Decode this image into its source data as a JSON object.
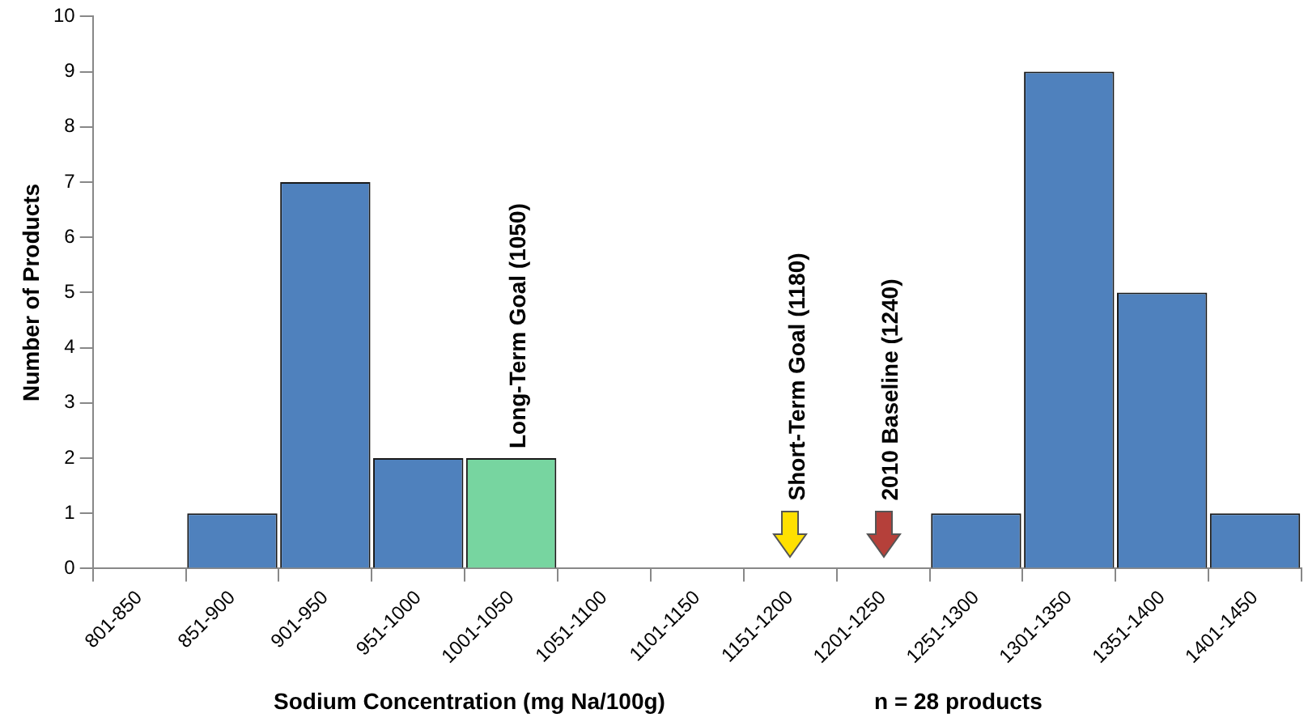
{
  "chart_data": {
    "type": "bar",
    "xlabel": "Sodium Concentration (mg Na/100g)",
    "ylabel": "Number of Products",
    "categories": [
      "801-850",
      "851-900",
      "901-950",
      "951-1000",
      "1001-1050",
      "1051-1100",
      "1101-1150",
      "1151-1200",
      "1201-1250",
      "1251-1300",
      "1301-1350",
      "1351-1400",
      "1401-1450"
    ],
    "values": [
      0,
      1,
      7,
      2,
      2,
      0,
      0,
      0,
      0,
      1,
      9,
      5,
      1
    ],
    "colors": [
      "#4f81bd",
      "#4f81bd",
      "#4f81bd",
      "#4f81bd",
      "#77d5a0",
      "#4f81bd",
      "#4f81bd",
      "#4f81bd",
      "#4f81bd",
      "#4f81bd",
      "#4f81bd",
      "#4f81bd",
      "#4f81bd"
    ],
    "ylim": [
      0,
      10
    ],
    "yticks": [
      0,
      1,
      2,
      3,
      4,
      5,
      6,
      7,
      8,
      9,
      10
    ],
    "grid": false,
    "legend": false,
    "annotations": [
      {
        "text": "Long-Term Goal (1050)",
        "x": "1001-1050",
        "y": 2
      },
      {
        "text": "Short-Term Goal (1180)",
        "x": "1151-1200",
        "y": 0
      },
      {
        "text": "2010 Baseline (1240)",
        "x": "1201-1250",
        "y": 0
      },
      "n = 28 products"
    ]
  }
}
